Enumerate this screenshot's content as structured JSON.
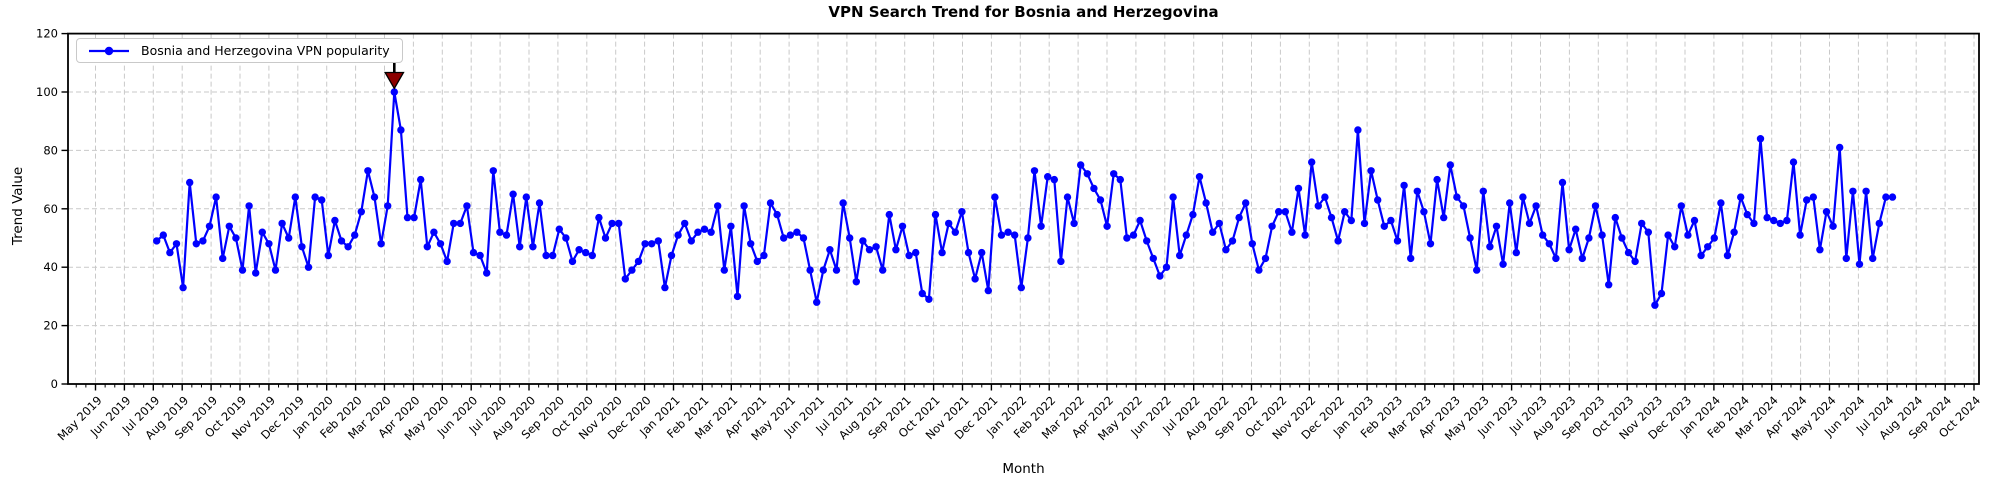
{
  "title": "VPN Search Trend for Bosnia and Herzegovina",
  "legend": {
    "label": "Bosnia and Herzegovina VPN popularity"
  },
  "axes": {
    "xlabel": "Month",
    "ylabel": "Trend Value",
    "yticks": [
      0,
      20,
      40,
      60,
      80,
      100,
      120
    ],
    "xtick_labels": [
      "May 2019",
      "Jun 2019",
      "Jul 2019",
      "Aug 2019",
      "Sep 2019",
      "Oct 2019",
      "Nov 2019",
      "Dec 2019",
      "Jan 2020",
      "Feb 2020",
      "Mar 2020",
      "Apr 2020",
      "May 2020",
      "Jun 2020",
      "Jul 2020",
      "Aug 2020",
      "Sep 2020",
      "Oct 2020",
      "Nov 2020",
      "Dec 2020",
      "Jan 2021",
      "Feb 2021",
      "Mar 2021",
      "Apr 2021",
      "May 2021",
      "Jun 2021",
      "Jul 2021",
      "Aug 2021",
      "Sep 2021",
      "Oct 2021",
      "Nov 2021",
      "Dec 2021",
      "Jan 2022",
      "Feb 2022",
      "Mar 2022",
      "Apr 2022",
      "May 2022",
      "Jun 2022",
      "Jul 2022",
      "Aug 2022",
      "Sep 2022",
      "Oct 2022",
      "Nov 2022",
      "Dec 2022",
      "Jan 2023",
      "Feb 2023",
      "Mar 2023",
      "Apr 2023",
      "May 2023",
      "Jun 2023",
      "Jul 2023",
      "Aug 2023",
      "Sep 2023",
      "Oct 2023",
      "Nov 2023",
      "Dec 2023",
      "Jan 2024",
      "Feb 2024",
      "Mar 2024",
      "Apr 2024",
      "May 2024",
      "Jun 2024",
      "Jul 2024",
      "Aug 2024",
      "Sep 2024",
      "Oct 2024"
    ]
  },
  "colors": {
    "series": "#0000ff",
    "annotation_fill": "#8b0000",
    "annotation_edge": "#000000",
    "grid": "#c9c9c9",
    "spine": "#000000"
  },
  "chart_data": {
    "type": "line",
    "title": "VPN Search Trend for Bosnia and Herzegovina",
    "xlabel": "Month",
    "ylabel": "Trend Value",
    "ylim": [
      0,
      120
    ],
    "grid": true,
    "legend_position": "upper left",
    "x_axis": {
      "first_month": "May 2019",
      "last_month": "Oct 2024",
      "months_count": 66
    },
    "series": [
      {
        "name": "Bosnia and Herzegovina VPN popularity",
        "color": "#0000ff",
        "marker": "circle",
        "frequency": "weekly",
        "start_week": "2019-07-07",
        "values": [
          49,
          51,
          45,
          48,
          33,
          69,
          48,
          49,
          54,
          64,
          43,
          54,
          50,
          39,
          61,
          38,
          52,
          48,
          39,
          55,
          50,
          64,
          47,
          40,
          64,
          63,
          44,
          56,
          49,
          47,
          51,
          59,
          73,
          64,
          48,
          61,
          100,
          87,
          57,
          57,
          70,
          47,
          52,
          48,
          42,
          55,
          55,
          61,
          45,
          44,
          38,
          73,
          52,
          51,
          65,
          47,
          64,
          47,
          62,
          44,
          44,
          53,
          50,
          42,
          46,
          45,
          44,
          57,
          50,
          55,
          55,
          36,
          39,
          42,
          48,
          48,
          49,
          33,
          44,
          51,
          55,
          49,
          52,
          53,
          52,
          61,
          39,
          54,
          30,
          61,
          48,
          42,
          44,
          62,
          58,
          50,
          51,
          52,
          50,
          39,
          28,
          39,
          46,
          39,
          62,
          50,
          35,
          49,
          46,
          47,
          39,
          58,
          46,
          54,
          44,
          45,
          31,
          29,
          58,
          45,
          55,
          52,
          59,
          45,
          36,
          45,
          32,
          64,
          51,
          52,
          51,
          33,
          50,
          73,
          54,
          71,
          70,
          42,
          64,
          55,
          75,
          72,
          67,
          63,
          54,
          72,
          70,
          50,
          51,
          56,
          49,
          43,
          37,
          40,
          64,
          44,
          51,
          58,
          71,
          62,
          52,
          55,
          46,
          49,
          57,
          62,
          48,
          39,
          43,
          54,
          59,
          59,
          52,
          67,
          51,
          76,
          61,
          64,
          57,
          49,
          59,
          56,
          87,
          55,
          73,
          63,
          54,
          56,
          49,
          68,
          43,
          66,
          59,
          48,
          70,
          57,
          75,
          64,
          61,
          50,
          39,
          66,
          47,
          54,
          41,
          62,
          45,
          64,
          55,
          61,
          51,
          48,
          43,
          69,
          46,
          53,
          43,
          50,
          61,
          51,
          34,
          57,
          50,
          45,
          42,
          55,
          52,
          27,
          31,
          51,
          47,
          61,
          51,
          56,
          44,
          47,
          50,
          62,
          44,
          52,
          64,
          58,
          55,
          84,
          57,
          56,
          55,
          56,
          76,
          51,
          63,
          64,
          46,
          59,
          54,
          81,
          43,
          66,
          41,
          66,
          43,
          55,
          64,
          64
        ]
      }
    ],
    "annotation": {
      "type": "down-arrow",
      "at_index": 36,
      "at_value": 100,
      "note": "peak marked with dark red downward triangle arrow",
      "fill": "#8b0000"
    }
  }
}
